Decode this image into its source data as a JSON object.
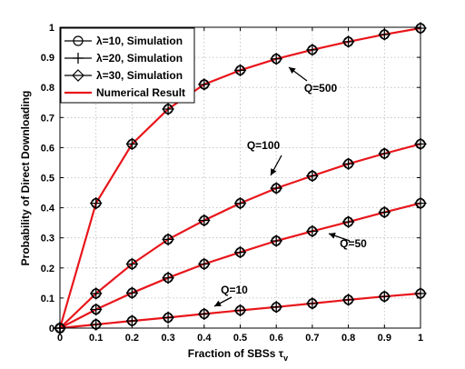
{
  "chart_data": {
    "type": "line",
    "xlabel": "Fraction of SBSs τ",
    "xlabel_subscript": "v",
    "ylabel": "Probability of Direct Downloading",
    "xlim": [
      0,
      1
    ],
    "ylim": [
      0,
      1
    ],
    "grid": true,
    "legend_position": "top-left",
    "x_ticks": [
      "0",
      "0.1",
      "0.2",
      "0.3",
      "0.4",
      "0.5",
      "0.6",
      "0.7",
      "0.8",
      "0.9",
      "1"
    ],
    "y_ticks": [
      "0",
      "0.1",
      "0.2",
      "0.3",
      "0.4",
      "0.5",
      "0.6",
      "0.7",
      "0.8",
      "0.9",
      "1"
    ],
    "x": [
      0,
      0.1,
      0.2,
      0.3,
      0.4,
      0.5,
      0.6,
      0.7,
      0.8,
      0.9,
      1.0
    ],
    "legend": [
      {
        "label": "λ=10, Simulation",
        "marker": "circle",
        "color": "#000000"
      },
      {
        "label": "λ=20, Simulation",
        "marker": "plus",
        "color": "#000000"
      },
      {
        "label": "λ=30, Simulation",
        "marker": "diamond",
        "color": "#000000"
      },
      {
        "label": "Numerical Result",
        "marker": "none",
        "color": "#e8161b"
      }
    ],
    "curves": [
      {
        "annotation": "Q=500",
        "values": [
          0,
          0.415,
          0.612,
          0.728,
          0.81,
          0.857,
          0.895,
          0.925,
          0.952,
          0.976,
          0.997
        ]
      },
      {
        "annotation": "Q=100",
        "values": [
          0,
          0.115,
          0.213,
          0.295,
          0.358,
          0.415,
          0.465,
          0.506,
          0.546,
          0.58,
          0.612
        ]
      },
      {
        "annotation": "Q=50",
        "values": [
          0,
          0.062,
          0.117,
          0.167,
          0.213,
          0.252,
          0.29,
          0.322,
          0.353,
          0.385,
          0.415
        ]
      },
      {
        "annotation": "Q=10",
        "values": [
          0,
          0.012,
          0.024,
          0.035,
          0.047,
          0.059,
          0.07,
          0.082,
          0.094,
          0.105,
          0.115
        ]
      }
    ],
    "colors": {
      "numerical": "#e8161b",
      "simulation": "#000000",
      "grid": "#b8b8b8"
    }
  }
}
